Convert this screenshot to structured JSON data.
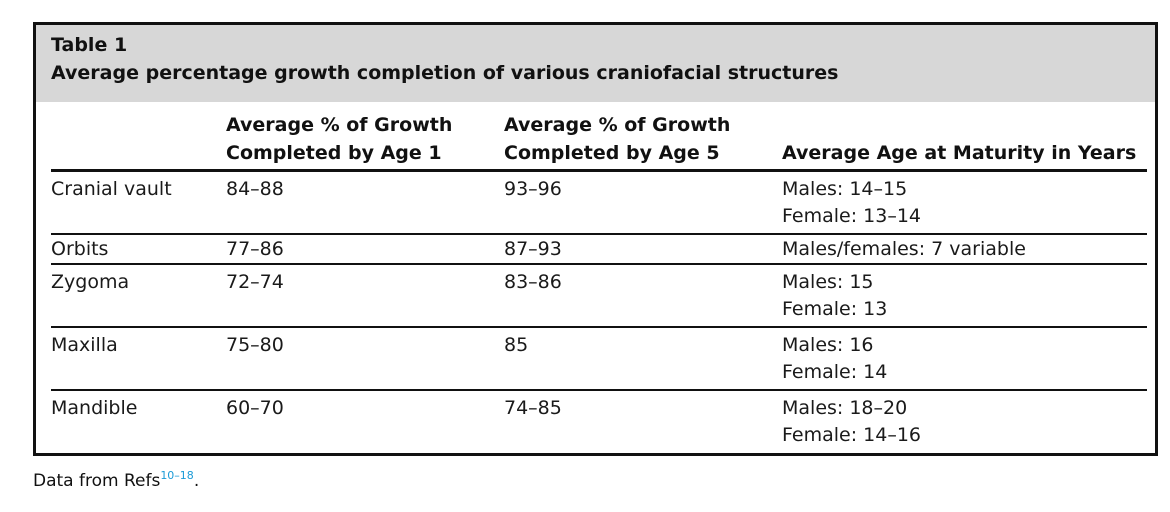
{
  "caption": {
    "label": "Table 1",
    "title": "Average percentage growth completion of various craniofacial structures"
  },
  "headers": [
    "",
    "Average % of Growth\nCompleted by Age 1",
    "Average % of Growth\nCompleted by Age 5",
    "Average Age at Maturity in Years"
  ],
  "rows": [
    {
      "structure": "Cranial vault",
      "age1": "84–88",
      "age5": "93–96",
      "maturity": [
        "Males: 14–15",
        "Female: 13–14"
      ]
    },
    {
      "structure": "Orbits",
      "age1": "77–86",
      "age5": "87–93",
      "maturity": [
        "Males/females: 7 variable"
      ]
    },
    {
      "structure": "Zygoma",
      "age1": "72–74",
      "age5": "83–86",
      "maturity": [
        "Males: 15",
        "Female: 13"
      ]
    },
    {
      "structure": "Maxilla",
      "age1": "75–80",
      "age5": "85",
      "maturity": [
        "Males: 16",
        "Female: 14"
      ]
    },
    {
      "structure": "Mandible",
      "age1": "60–70",
      "age5": "74–85",
      "maturity": [
        "Males: 18–20",
        "Female: 14–16"
      ]
    }
  ],
  "footnote": {
    "text": "Data from Refs",
    "ref": "10–18",
    "end": "."
  },
  "colors": {
    "caption_bg": "#d7d7d7",
    "rule": "#111111",
    "ref_link": "#1b9bd7"
  }
}
